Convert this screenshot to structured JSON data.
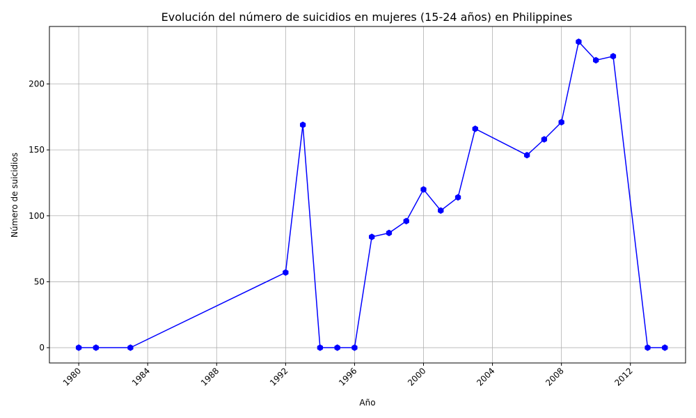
{
  "chart_data": {
    "type": "line",
    "title": "Evolución del número de suicidios en mujeres (15-24 años) en Philippines",
    "xlabel": "Año",
    "ylabel": "Número de suicidios",
    "xlim": [
      1978.3,
      2015.2
    ],
    "ylim": [
      -11.6,
      243.6
    ],
    "xticks": [
      1980,
      1984,
      1988,
      1992,
      1996,
      2000,
      2004,
      2008,
      2012
    ],
    "xtick_labels": [
      "1980",
      "1984",
      "1988",
      "1992",
      "1996",
      "2000",
      "2004",
      "2008",
      "2012"
    ],
    "yticks": [
      0,
      50,
      100,
      150,
      200
    ],
    "ytick_labels": [
      "0",
      "50",
      "100",
      "150",
      "200"
    ],
    "grid": true,
    "series": [
      {
        "color": "#0000ff",
        "marker": "hexagon",
        "points": [
          {
            "x": 1980,
            "y": 0
          },
          {
            "x": 1981,
            "y": 0
          },
          {
            "x": 1983,
            "y": 0
          },
          {
            "x": 1992,
            "y": 57
          },
          {
            "x": 1993,
            "y": 169
          },
          {
            "x": 1994,
            "y": 0
          },
          {
            "x": 1995,
            "y": 0
          },
          {
            "x": 1996,
            "y": 0
          },
          {
            "x": 1997,
            "y": 84
          },
          {
            "x": 1998,
            "y": 87
          },
          {
            "x": 1999,
            "y": 96
          },
          {
            "x": 2000,
            "y": 120
          },
          {
            "x": 2001,
            "y": 104
          },
          {
            "x": 2002,
            "y": 114
          },
          {
            "x": 2003,
            "y": 166
          },
          {
            "x": 2006,
            "y": 146
          },
          {
            "x": 2007,
            "y": 158
          },
          {
            "x": 2008,
            "y": 171
          },
          {
            "x": 2009,
            "y": 232
          },
          {
            "x": 2010,
            "y": 218
          },
          {
            "x": 2011,
            "y": 221
          },
          {
            "x": 2013,
            "y": 0
          },
          {
            "x": 2014,
            "y": 0
          }
        ]
      }
    ]
  }
}
